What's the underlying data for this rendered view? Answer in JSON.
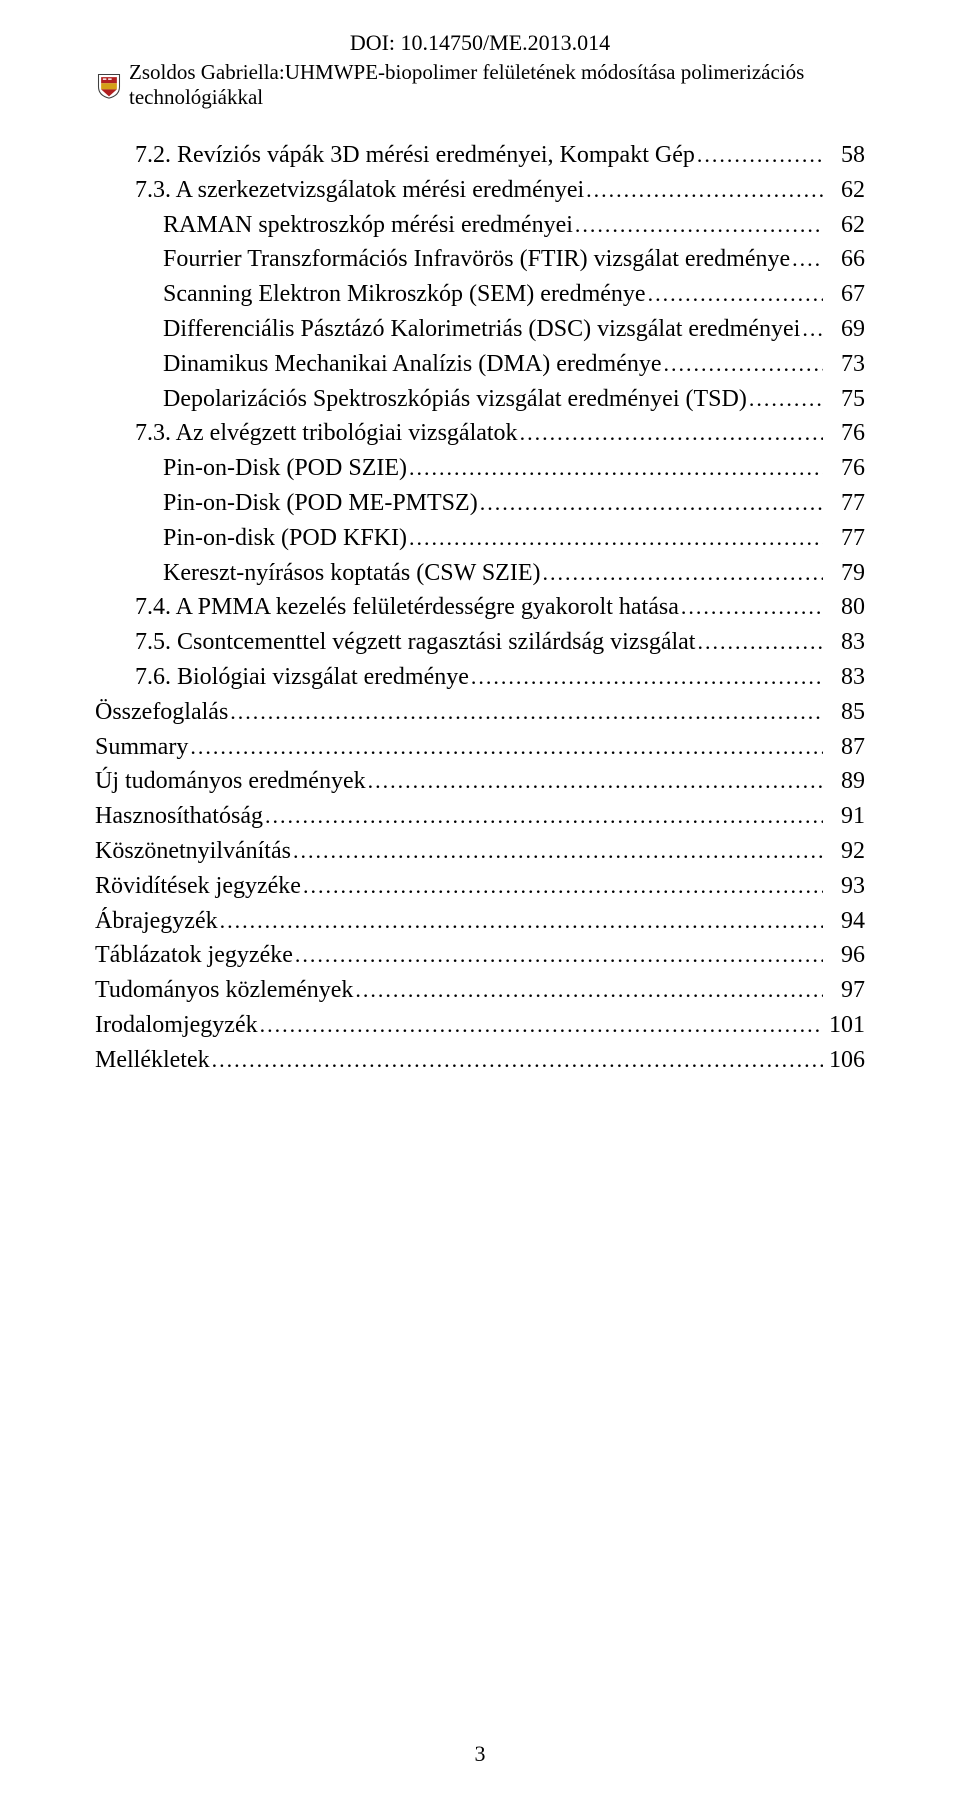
{
  "doi": "DOI: 10.14750/ME.2013.014",
  "header_title": "Zsoldos Gabriella:UHMWPE-biopolimer felületének módosítása polimerizációs technológiákkal",
  "crest_colors": {
    "red": "#b02020",
    "gold": "#d4a017",
    "border": "#404040"
  },
  "page_number": "3",
  "toc": [
    {
      "indent": 1,
      "label": "7.2. Revíziós vápák 3D mérési eredményei, Kompakt Gép",
      "page": "58"
    },
    {
      "indent": 1,
      "label": "7.3. A szerkezetvizsgálatok mérési eredményei",
      "page": "62"
    },
    {
      "indent": 2,
      "label": "RAMAN spektroszkóp mérési eredményei",
      "page": "62"
    },
    {
      "indent": 2,
      "label": "Fourrier Transzformációs Infravörös (FTIR) vizsgálat eredménye",
      "page": "66"
    },
    {
      "indent": 2,
      "label": "Scanning Elektron Mikroszkóp (SEM) eredménye",
      "page": "67"
    },
    {
      "indent": 2,
      "label": "Differenciális Pásztázó Kalorimetriás (DSC) vizsgálat eredményei",
      "page": "69"
    },
    {
      "indent": 2,
      "label": "Dinamikus Mechanikai Analízis (DMA) eredménye",
      "page": "73"
    },
    {
      "indent": 2,
      "label": "Depolarizációs Spektroszkópiás vizsgálat eredményei (TSD)",
      "page": "75"
    },
    {
      "indent": 1,
      "label": "7.3. Az elvégzett tribológiai vizsgálatok",
      "page": "76"
    },
    {
      "indent": 2,
      "label": "Pin-on-Disk (POD SZIE)",
      "page": "76"
    },
    {
      "indent": 2,
      "label": "Pin-on-Disk (POD ME-PMTSZ)",
      "page": "77"
    },
    {
      "indent": 2,
      "label": "Pin-on-disk (POD KFKI)",
      "page": "77"
    },
    {
      "indent": 2,
      "label": "Kereszt-nyírásos koptatás (CSW SZIE)",
      "page": "79"
    },
    {
      "indent": 1,
      "label": "7.4. A PMMA kezelés felületérdességre gyakorolt hatása",
      "page": "80"
    },
    {
      "indent": 1,
      "label": "7.5. Csontcementtel végzett ragasztási szilárdság vizsgálat",
      "page": "83"
    },
    {
      "indent": 1,
      "label": "7.6. Biológiai vizsgálat eredménye",
      "page": "83"
    },
    {
      "indent": 0,
      "label": "Összefoglalás",
      "page": "85"
    },
    {
      "indent": 0,
      "label": "Summary",
      "page": "87"
    },
    {
      "indent": 0,
      "label": "Új tudományos eredmények",
      "page": "89"
    },
    {
      "indent": 0,
      "label": "Hasznosíthatóság",
      "page": "91"
    },
    {
      "indent": 0,
      "label": "Köszönetnyilvánítás",
      "page": "92"
    },
    {
      "indent": 0,
      "label": "Rövidítések jegyzéke",
      "page": "93"
    },
    {
      "indent": 0,
      "label": "Ábrajegyzék",
      "page": "94"
    },
    {
      "indent": 0,
      "label": "Táblázatok jegyzéke",
      "page": "96"
    },
    {
      "indent": 0,
      "label": "Tudományos közlemények",
      "page": "97"
    },
    {
      "indent": 0,
      "label": "Irodalomjegyzék",
      "page": "101"
    },
    {
      "indent": 0,
      "label": "Mellékletek",
      "page": "106"
    }
  ]
}
